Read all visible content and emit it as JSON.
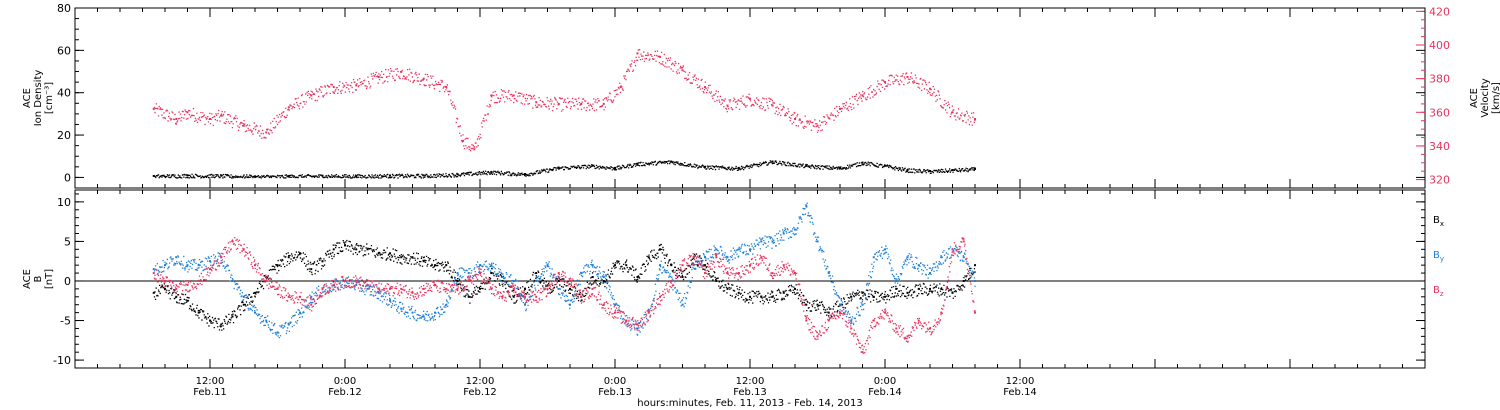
{
  "colors": {
    "black": "#000000",
    "pink": "#e8335e",
    "blue": "#1f7fd8",
    "background": "#ffffff"
  },
  "time_axis": {
    "xmin": 0,
    "xmax": 120,
    "note_units": "hours since Feb.11 00:00",
    "ticks": [
      {
        "t": 12,
        "hhmm": "12:00",
        "date": "Feb.11"
      },
      {
        "t": 24,
        "hhmm": "0:00",
        "date": "Feb.12"
      },
      {
        "t": 36,
        "hhmm": "12:00",
        "date": "Feb.12"
      },
      {
        "t": 48,
        "hhmm": "0:00",
        "date": "Feb.13"
      },
      {
        "t": 60,
        "hhmm": "12:00",
        "date": "Feb.13"
      },
      {
        "t": 72,
        "hhmm": "0:00",
        "date": "Feb.14"
      },
      {
        "t": 84,
        "hhmm": "12:00",
        "date": "Feb.14"
      }
    ],
    "xlabel": "hours:minutes, Feb. 11, 2013 - Feb. 14, 2013"
  },
  "chart_data": [
    {
      "type": "scatter",
      "panel": "top",
      "left_axis": {
        "label_lines": [
          "ACE",
          "Ion Density",
          "[cm⁻³]"
        ],
        "ylim": [
          -5,
          80
        ],
        "ticks": [
          0,
          20,
          40,
          60,
          80
        ]
      },
      "right_axis": {
        "label_lines": [
          "ACE",
          "Velocity",
          "[km/s]"
        ],
        "ylim": [
          315,
          422
        ],
        "ticks": [
          320,
          340,
          360,
          380,
          400,
          420
        ]
      },
      "series": [
        {
          "color": "pink",
          "axis": "right",
          "x": [
            7,
            9,
            10,
            12,
            13,
            15,
            17,
            19,
            21,
            23,
            25,
            27,
            29,
            31,
            33,
            34.5,
            35.5,
            37,
            39,
            41,
            43,
            45,
            47,
            48.5,
            50,
            52,
            54,
            56,
            58,
            60,
            62,
            64,
            66,
            68,
            70,
            72,
            74,
            76,
            78,
            80
          ],
          "y": [
            362,
            356,
            360,
            356,
            358,
            352,
            348,
            363,
            370,
            375,
            376,
            381,
            384,
            380,
            375,
            343,
            338,
            370,
            370,
            366,
            365,
            365,
            365,
            375,
            395,
            393,
            385,
            375,
            364,
            368,
            364,
            356,
            352,
            362,
            370,
            378,
            381,
            374,
            360,
            356
          ]
        },
        {
          "color": "black",
          "axis": "left",
          "x": [
            7,
            10,
            13,
            16,
            19,
            22,
            25,
            28,
            31,
            34,
            37,
            40,
            43,
            46,
            48,
            50,
            53,
            56,
            59,
            62,
            65,
            68,
            70,
            72,
            74,
            76,
            78,
            80
          ],
          "y": [
            0.7,
            1,
            0.8,
            0.5,
            0.6,
            0.8,
            0.7,
            0.9,
            0.9,
            1.5,
            2.6,
            1.6,
            4.6,
            5.5,
            4.5,
            6.5,
            7.5,
            5.0,
            4.5,
            7.5,
            5.5,
            4.5,
            7.0,
            5.5,
            3.5,
            3.0,
            3.5,
            4.0
          ]
        }
      ]
    },
    {
      "type": "scatter",
      "panel": "bottom",
      "left_axis": {
        "label_lines": [
          "ACE",
          "B",
          "[nT]"
        ],
        "ylim": [
          -11,
          11.5
        ],
        "ticks": [
          -10,
          -5,
          0,
          5,
          10
        ]
      },
      "legend": [
        {
          "text": "B",
          "sub": "x",
          "color": "black"
        },
        {
          "text": "B",
          "sub": "y",
          "color": "blue"
        },
        {
          "text": "B",
          "sub": "z",
          "color": "pink"
        }
      ],
      "series": [
        {
          "name": "Bx",
          "color": "black",
          "x": [
            7,
            8,
            9,
            10,
            11,
            12,
            13,
            14,
            15,
            16,
            17,
            18,
            19,
            20,
            21,
            22,
            23,
            24,
            25,
            26,
            27,
            28,
            29,
            30,
            31,
            32,
            33,
            34,
            35,
            36,
            37,
            38,
            39,
            40,
            41,
            42,
            43,
            44,
            45,
            46,
            47,
            48,
            49,
            50,
            51,
            52,
            53,
            54,
            55,
            56,
            57,
            58,
            59,
            60,
            61,
            62,
            63,
            64,
            65,
            66,
            67,
            68,
            69,
            70,
            71,
            72,
            73,
            74,
            75,
            76,
            77,
            78,
            79,
            80
          ],
          "y": [
            -1.5,
            -1,
            -2,
            -2.5,
            -4,
            -5,
            -5.5,
            -4.5,
            -3,
            -1.5,
            0.5,
            2,
            3,
            3.5,
            1.5,
            2.5,
            4,
            4.5,
            4,
            4,
            3.5,
            3.5,
            3,
            3,
            2.5,
            2,
            2,
            0,
            -2,
            -1,
            1,
            0,
            -2,
            -1,
            1,
            -1,
            0,
            -1,
            -2,
            0.5,
            0,
            2,
            2,
            0.5,
            3,
            4,
            2,
            0.5,
            3,
            2,
            0,
            -1,
            -1.5,
            -2,
            -2,
            -2,
            -1.5,
            -1,
            -3,
            -3,
            -4,
            -3,
            -2,
            -1.5,
            -2,
            -2,
            -1,
            -1.5,
            -1,
            -1,
            -1,
            -1.5,
            0,
            2
          ]
        },
        {
          "name": "By",
          "color": "blue",
          "x": [
            7,
            8,
            9,
            10,
            11,
            12,
            13,
            14,
            15,
            16,
            17,
            18,
            19,
            20,
            21,
            22,
            23,
            24,
            25,
            26,
            27,
            28,
            29,
            30,
            31,
            32,
            33,
            34,
            35,
            36,
            37,
            38,
            39,
            40,
            41,
            42,
            43,
            44,
            45,
            46,
            47,
            48,
            49,
            50,
            51,
            52,
            53,
            54,
            55,
            56,
            57,
            58,
            59,
            60,
            61,
            62,
            63,
            64,
            65,
            66,
            67,
            68,
            69,
            70,
            71,
            72,
            73,
            74,
            75,
            76,
            77,
            78,
            79,
            80
          ],
          "y": [
            1.5,
            2,
            3,
            2,
            2,
            2.5,
            3,
            0,
            -2,
            -4,
            -5,
            -6.5,
            -5.5,
            -4,
            -2,
            -1,
            -0.5,
            0,
            -0.5,
            -1,
            -1.5,
            -2.5,
            -3.5,
            -4,
            -4.5,
            -4,
            -3,
            1,
            1,
            2,
            2,
            0.5,
            0,
            -3,
            0,
            2,
            -1,
            -3,
            1,
            2,
            0.5,
            -3,
            -5,
            -6,
            -4,
            2,
            0,
            -3,
            2,
            3,
            4,
            3,
            4,
            4,
            5,
            5,
            6,
            6.5,
            9.5,
            5,
            1,
            -3,
            -5,
            -3,
            3,
            4,
            0,
            3,
            2,
            1,
            3,
            4,
            3,
            0
          ]
        },
        {
          "name": "Bz",
          "color": "pink",
          "x": [
            7,
            8,
            9,
            10,
            11,
            12,
            13,
            14,
            15,
            16,
            17,
            18,
            19,
            20,
            21,
            22,
            23,
            24,
            25,
            26,
            27,
            28,
            29,
            30,
            31,
            32,
            33,
            34,
            35,
            36,
            37,
            38,
            39,
            40,
            41,
            42,
            43,
            44,
            45,
            46,
            47,
            48,
            49,
            50,
            51,
            52,
            53,
            54,
            55,
            56,
            57,
            58,
            59,
            60,
            61,
            62,
            63,
            64,
            65,
            66,
            67,
            68,
            69,
            70,
            71,
            72,
            73,
            74,
            75,
            76,
            77,
            78,
            79,
            80
          ],
          "y": [
            1,
            0,
            -1,
            -0.5,
            0,
            1.5,
            3,
            5,
            4,
            2,
            0,
            -1,
            -2,
            -2,
            -3,
            -1,
            -0.5,
            0,
            0,
            -0.5,
            -1,
            -1,
            -1,
            -1.5,
            -1,
            -0.5,
            -1,
            -1,
            0,
            1,
            -1,
            -2,
            -1,
            -2,
            -2,
            -1,
            1,
            0,
            -2,
            -1,
            -3,
            -4,
            -5,
            -5.5,
            -4,
            -2,
            0,
            2,
            3,
            1,
            3,
            1,
            1,
            2,
            3,
            1,
            2,
            1,
            -5,
            -7,
            -5,
            -4,
            -6,
            -9,
            -5,
            -4,
            -6,
            -7,
            -5,
            -6,
            -4,
            4,
            5,
            -4
          ]
        }
      ]
    }
  ]
}
